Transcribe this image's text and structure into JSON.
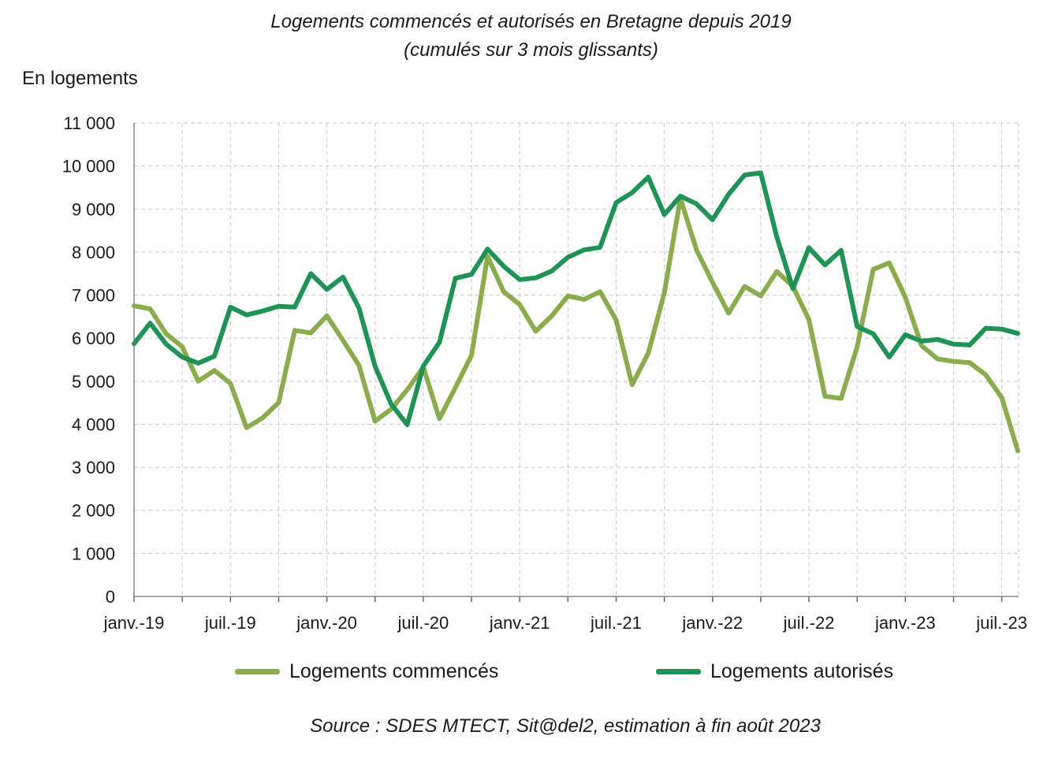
{
  "chart_data": {
    "type": "line",
    "title": "Logements commencés et autorisés en Bretagne depuis 2019",
    "subtitle": "(cumulés sur 3 mois glissants)",
    "ylabel": "En logements",
    "ylim": [
      0,
      11000
    ],
    "yticks": [
      "11 000",
      "10 000",
      "9 000",
      "8 000",
      "7 000",
      "6 000",
      "5 000",
      "4 000",
      "3 000",
      "2 000",
      "1 000",
      "0"
    ],
    "ytick_values": [
      11000,
      10000,
      9000,
      8000,
      7000,
      6000,
      5000,
      4000,
      3000,
      2000,
      1000,
      0
    ],
    "x": [
      "2019-01",
      "2019-02",
      "2019-03",
      "2019-04",
      "2019-05",
      "2019-06",
      "2019-07",
      "2019-08",
      "2019-09",
      "2019-10",
      "2019-11",
      "2019-12",
      "2020-01",
      "2020-02",
      "2020-03",
      "2020-04",
      "2020-05",
      "2020-06",
      "2020-07",
      "2020-08",
      "2020-09",
      "2020-10",
      "2020-11",
      "2020-12",
      "2021-01",
      "2021-02",
      "2021-03",
      "2021-04",
      "2021-05",
      "2021-06",
      "2021-07",
      "2021-08",
      "2021-09",
      "2021-10",
      "2021-11",
      "2021-12",
      "2022-01",
      "2022-02",
      "2022-03",
      "2022-04",
      "2022-05",
      "2022-06",
      "2022-07",
      "2022-08",
      "2022-09",
      "2022-10",
      "2022-11",
      "2022-12",
      "2023-01",
      "2023-02",
      "2023-03",
      "2023-04",
      "2023-05",
      "2023-06",
      "2023-07",
      "2023-08"
    ],
    "xtick_labels": [
      "janv.-19",
      "juil.-19",
      "janv.-20",
      "juil.-20",
      "janv.-21",
      "juil.-21",
      "janv.-22",
      "juil.-22",
      "janv.-23",
      "juil.-23"
    ],
    "xtick_index": [
      0,
      6,
      12,
      18,
      24,
      30,
      36,
      42,
      48,
      54
    ],
    "grid": true,
    "legend_position": "bottom",
    "series": [
      {
        "name": "Logements commencés",
        "color": "#8aab4e",
        "values": [
          6750,
          6680,
          6100,
          5800,
          5000,
          5250,
          4950,
          3920,
          4150,
          4500,
          6180,
          6120,
          6520,
          5950,
          5370,
          4070,
          4350,
          4800,
          5330,
          4130,
          4850,
          5600,
          7900,
          7080,
          6780,
          6160,
          6520,
          6980,
          6900,
          7080,
          6420,
          4920,
          5650,
          7050,
          9250,
          8050,
          7300,
          6580,
          7200,
          6980,
          7550,
          7200,
          6430,
          4650,
          4600,
          5800,
          7600,
          7750,
          6950,
          5830,
          5520,
          5460,
          5430,
          5150,
          4620,
          3380
        ]
      },
      {
        "name": "Logements autorisés",
        "color": "#1f9355",
        "values": [
          5870,
          6350,
          5860,
          5560,
          5420,
          5580,
          6720,
          6540,
          6630,
          6740,
          6720,
          7500,
          7130,
          7420,
          6700,
          5350,
          4470,
          3990,
          5350,
          5900,
          7390,
          7480,
          8070,
          7670,
          7360,
          7400,
          7560,
          7880,
          8050,
          8110,
          9150,
          9380,
          9740,
          8870,
          9300,
          9120,
          8750,
          9340,
          9790,
          9840,
          8350,
          7150,
          8100,
          7700,
          8040,
          6270,
          6100,
          5560,
          6080,
          5930,
          5970,
          5860,
          5840,
          6230,
          6210,
          6110
        ]
      }
    ]
  },
  "source": "Source : SDES MTECT, Sit@del2, estimation à fin août 2023"
}
